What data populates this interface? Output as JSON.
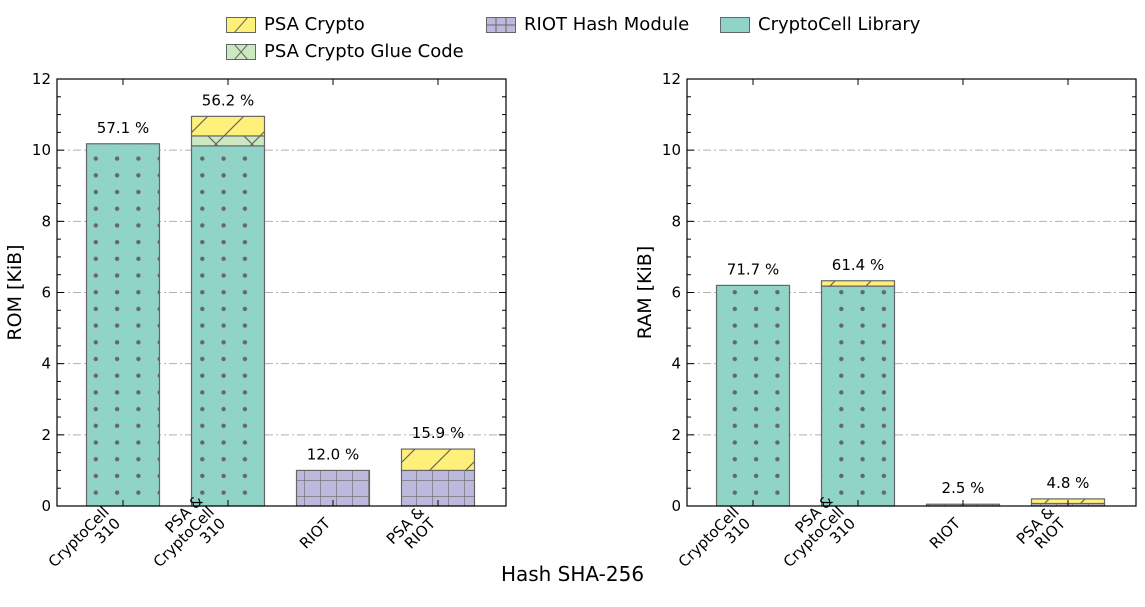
{
  "legend": {
    "psa_crypto": "PSA Crypto",
    "psa_glue": "PSA Crypto Glue Code",
    "riot_hash": "RIOT Hash Module",
    "cryptocell": "CryptoCell Library"
  },
  "colors": {
    "psa_crypto": "#fff07a",
    "psa_glue": "#cce8c0",
    "riot_hash": "#bdb9dc",
    "cryptocell": "#8fd4c6",
    "edge": "#666666",
    "grid": "#b0b0b0"
  },
  "xlabel": "Hash SHA-256",
  "chart_data": [
    {
      "type": "bar",
      "stacked": true,
      "ylabel": "ROM [KiB]",
      "ylim": [
        0,
        12
      ],
      "yticks": [
        0,
        2,
        4,
        6,
        8,
        10,
        12
      ],
      "grid": "y, dash-dot",
      "categories": [
        [
          "CryptoCell",
          "310"
        ],
        [
          "PSA &",
          "CryptoCell",
          "310"
        ],
        [
          "RIOT"
        ],
        [
          "PSA &",
          "RIOT"
        ]
      ],
      "annotations": [
        "57.1 %",
        "56.2 %",
        "12.0 %",
        "15.9 %"
      ],
      "series": [
        {
          "name": "CryptoCell Library",
          "key": "cryptocell",
          "values": [
            10.18,
            10.12,
            0,
            0
          ]
        },
        {
          "name": "RIOT Hash Module",
          "key": "riot_hash",
          "values": [
            0,
            0,
            1.0,
            1.0
          ]
        },
        {
          "name": "PSA Crypto Glue Code",
          "key": "psa_glue",
          "values": [
            0,
            0.28,
            0,
            0
          ]
        },
        {
          "name": "PSA Crypto",
          "key": "psa_crypto",
          "values": [
            0,
            0.55,
            0,
            0.6
          ]
        }
      ]
    },
    {
      "type": "bar",
      "stacked": true,
      "ylabel": "RAM [KiB]",
      "ylim": [
        0,
        12
      ],
      "yticks": [
        0,
        2,
        4,
        6,
        8,
        10,
        12
      ],
      "grid": "y, dash-dot",
      "categories": [
        [
          "CryptoCell",
          "310"
        ],
        [
          "PSA &",
          "CryptoCell",
          "310"
        ],
        [
          "RIOT"
        ],
        [
          "PSA &",
          "RIOT"
        ]
      ],
      "annotations": [
        "71.7 %",
        "61.4 %",
        "2.5 %",
        "4.8 %"
      ],
      "series": [
        {
          "name": "CryptoCell Library",
          "key": "cryptocell",
          "values": [
            6.2,
            6.18,
            0,
            0
          ]
        },
        {
          "name": "RIOT Hash Module",
          "key": "riot_hash",
          "values": [
            0,
            0,
            0.05,
            0.07
          ]
        },
        {
          "name": "PSA Crypto Glue Code",
          "key": "psa_glue",
          "values": [
            0,
            0,
            0,
            0
          ]
        },
        {
          "name": "PSA Crypto",
          "key": "psa_crypto",
          "values": [
            0,
            0.15,
            0,
            0.13
          ]
        }
      ]
    }
  ]
}
